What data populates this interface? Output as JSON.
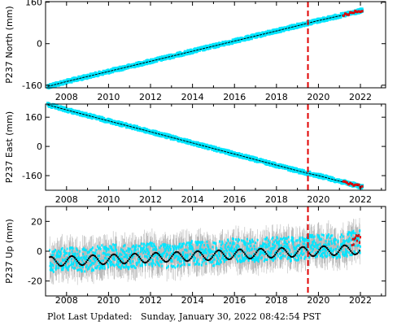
{
  "colors": {
    "data": "#00e5ff",
    "model": "#000000",
    "error": "#a8a8a8",
    "recent": "#e00000",
    "marker": "#e00000",
    "frame": "#000000"
  },
  "footer": {
    "label": "Plot Last Updated:",
    "timestamp": "Sunday, January 30, 2022 08:42:54 PST"
  },
  "chart_data": [
    {
      "type": "scatter",
      "title": "",
      "ylabel": "P237 North (mm)",
      "xlabel": "",
      "xlim": [
        2007.0,
        2023.2
      ],
      "ylim": [
        -170,
        162
      ],
      "xticks": [
        2008,
        2010,
        2012,
        2014,
        2016,
        2018,
        2020,
        2022
      ],
      "yticks": [
        -160,
        0,
        160
      ],
      "event_year": 2019.5,
      "series": [
        {
          "x": [
            2007.1,
            2008,
            2010,
            2012,
            2014,
            2016,
            2018,
            2019.5,
            2020,
            2021,
            2022.1
          ],
          "y": [
            -165,
            -146,
            -107,
            -68,
            -29,
            10,
            49,
            79,
            89,
            107,
            128
          ]
        }
      ]
    },
    {
      "type": "scatter",
      "title": "",
      "ylabel": "P237 East (mm)",
      "xlabel": "",
      "xlim": [
        2007.0,
        2023.2
      ],
      "ylim": [
        -240,
        232
      ],
      "xticks": [
        2008,
        2010,
        2012,
        2014,
        2016,
        2018,
        2020,
        2022
      ],
      "yticks": [
        -160,
        0,
        160
      ],
      "event_year": 2019.5,
      "series": [
        {
          "x": [
            2007.1,
            2008,
            2010,
            2012,
            2014,
            2016,
            2018,
            2019.5,
            2020,
            2021,
            2022.1
          ],
          "y": [
            228,
            200,
            140,
            80,
            19,
            -42,
            -103,
            -148,
            -160,
            -190,
            -222
          ]
        }
      ]
    },
    {
      "type": "scatter",
      "title": "",
      "ylabel": "P237 Up (mm)",
      "xlabel": "",
      "xlim": [
        2007.0,
        2023.2
      ],
      "ylim": [
        -30,
        30
      ],
      "xticks": [
        2008,
        2010,
        2012,
        2014,
        2016,
        2018,
        2020,
        2022
      ],
      "yticks": [
        -20,
        0,
        20
      ],
      "event_year": 2019.5,
      "trend": {
        "start": -7,
        "slope_per_year": 0.55,
        "seasonal_amplitude": 3.2
      },
      "series": [
        {
          "x": [
            2007.2,
            2008,
            2009,
            2010,
            2011,
            2012,
            2013,
            2014,
            2015,
            2016,
            2017,
            2018,
            2019,
            2020,
            2021,
            2022
          ],
          "y": [
            -7,
            -5,
            -6,
            -3,
            -4,
            -2,
            -4,
            -1,
            -2,
            1,
            0,
            2,
            1,
            4,
            3,
            7
          ]
        }
      ]
    }
  ]
}
